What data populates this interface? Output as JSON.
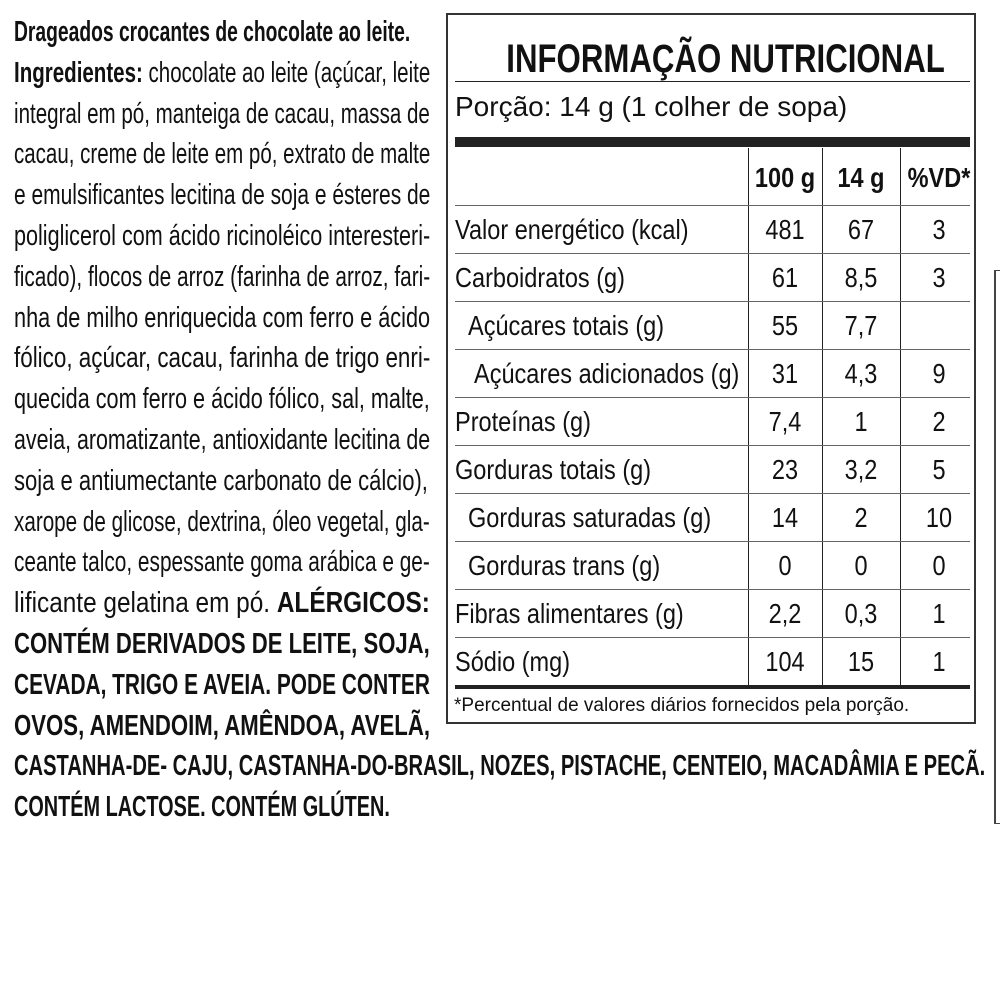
{
  "left_text": {
    "lines": [
      [
        {
          "t": "Drageados crocantes de chocolate ao leite.",
          "b": true
        }
      ],
      [
        {
          "t": "Ingredientes:",
          "b": true
        },
        {
          "t": " chocolate ao leite (açúcar, leite",
          "b": false
        }
      ],
      [
        {
          "t": "integral em pó, manteiga de cacau, massa de",
          "b": false
        }
      ],
      [
        {
          "t": "cacau, creme de leite em pó, extrato de malte",
          "b": false
        }
      ],
      [
        {
          "t": "e emulsificantes lecitina de soja e ésteres de",
          "b": false
        }
      ],
      [
        {
          "t": "poliglicerol com ácido ricinoléico interesteri-",
          "b": false
        }
      ],
      [
        {
          "t": "ficado), flocos de arroz (farinha de arroz, fari-",
          "b": false
        }
      ],
      [
        {
          "t": "nha de milho enriquecida com ferro e ácido",
          "b": false
        }
      ],
      [
        {
          "t": "fólico, açúcar, cacau, farinha de trigo enri-",
          "b": false
        }
      ],
      [
        {
          "t": "quecida com ferro e ácido fólico, sal, malte,",
          "b": false
        }
      ],
      [
        {
          "t": "aveia, aromatizante, antioxidante lecitina de",
          "b": false
        }
      ],
      [
        {
          "t": "soja e antiumectante carbonato de cálcio),",
          "b": false
        }
      ],
      [
        {
          "t": "xarope de glicose, dextrina, óleo vegetal, gla-",
          "b": false
        }
      ],
      [
        {
          "t": "ceante talco, espessante goma arábica e ge-",
          "b": false
        }
      ],
      [
        {
          "t": "lificante gelatina em pó. ",
          "b": false
        },
        {
          "t": "ALÉRGICOS:",
          "b": true
        }
      ],
      [
        {
          "t": "CONTÉM DERIVADOS DE LEITE, SOJA,",
          "b": true
        }
      ],
      [
        {
          "t": "CEVADA, TRIGO E AVEIA. PODE CONTER",
          "b": true
        }
      ],
      [
        {
          "t": "OVOS, AMENDOIM, AMÊNDOA, AVELÃ,",
          "b": true
        }
      ],
      [
        {
          "t": "CASTANHA-DE- CAJU, CASTANHA-DO-BRASIL, NOZES, PISTACHE, CENTEIO, MACADÂMIA E PECÃ.",
          "b": true
        }
      ],
      [
        {
          "t": "CONTÉM LACTOSE. CONTÉM GLÚTEN.",
          "b": true
        }
      ]
    ]
  },
  "nutrition": {
    "title": "INFORMAÇÃO NUTRICIONAL",
    "portion": "Porção: 14 g (1 colher de sopa)",
    "headers": [
      "100 g",
      "14 g",
      "%VD*"
    ],
    "rows": [
      {
        "label": "Valor energético (kcal)",
        "per100": "481",
        "perPortion": "67",
        "vd": "3",
        "indent": 0
      },
      {
        "label": "Carboidratos (g)",
        "per100": "61",
        "perPortion": "8,5",
        "vd": "3",
        "indent": 0
      },
      {
        "label": "Açúcares totais (g)",
        "per100": "55",
        "perPortion": "7,7",
        "vd": "",
        "indent": 1
      },
      {
        "label": "Açúcares adicionados (g)",
        "per100": "31",
        "perPortion": "4,3",
        "vd": "9",
        "indent": 2
      },
      {
        "label": "Proteínas (g)",
        "per100": "7,4",
        "perPortion": "1",
        "vd": "2",
        "indent": 0
      },
      {
        "label": "Gorduras totais (g)",
        "per100": "23",
        "perPortion": "3,2",
        "vd": "5",
        "indent": 0
      },
      {
        "label": "Gorduras saturadas (g)",
        "per100": "14",
        "perPortion": "2",
        "vd": "10",
        "indent": 1
      },
      {
        "label": "Gorduras trans (g)",
        "per100": "0",
        "perPortion": "0",
        "vd": "0",
        "indent": 1
      },
      {
        "label": "Fibras alimentares (g)",
        "per100": "2,2",
        "perPortion": "0,3",
        "vd": "1",
        "indent": 0
      },
      {
        "label": "Sódio (mg)",
        "per100": "104",
        "perPortion": "15",
        "vd": "1",
        "indent": 0
      }
    ],
    "footnote": "*Percentual de valores diários fornecidos pela porção."
  }
}
